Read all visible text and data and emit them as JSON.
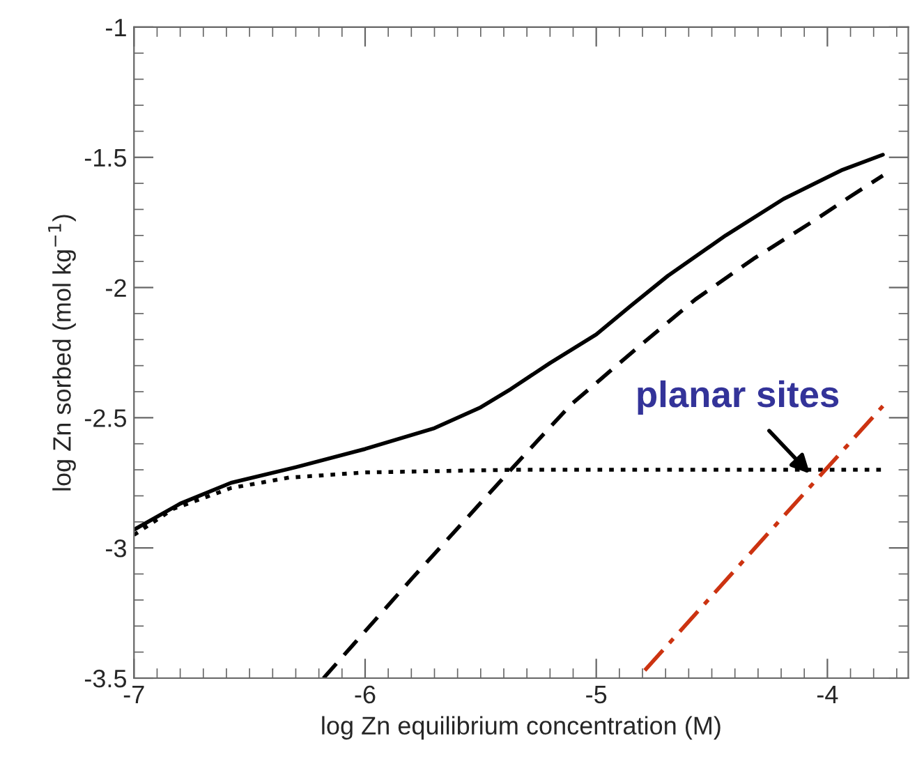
{
  "chart_data": {
    "type": "line",
    "xlabel": "log Zn equilibrium concentration (M)",
    "ylabel": "log Zn sorbed (mol kg$^{−1}$)",
    "xlim": [
      -7,
      -3.65
    ],
    "xticks": [
      -7,
      -6,
      -5,
      -4
    ],
    "ylim": [
      -3.5,
      -1
    ],
    "yticks": [
      -3.5,
      -3,
      -2.5,
      -2,
      -1.5,
      -1
    ],
    "grid": false,
    "legend": false,
    "marker": "none",
    "series": [
      {
        "color": "#000000",
        "line_style": "solid",
        "x": [
          -7,
          -6.8,
          -6.58,
          -6.3,
          -6,
          -5.7,
          -5.5,
          -5.37,
          -5.2,
          -5.0,
          -4.85,
          -4.69,
          -4.44,
          -4.19,
          -3.94,
          -3.76
        ],
        "values": [
          -2.93,
          -2.83,
          -2.75,
          -2.69,
          -2.62,
          -2.54,
          -2.46,
          -2.39,
          -2.29,
          -2.18,
          -2.07,
          -1.955,
          -1.8,
          -1.66,
          -1.55,
          -1.49
        ]
      },
      {
        "color": "#000000",
        "line_style": "dashed",
        "x": [
          -6.18,
          -5.8,
          -5.37,
          -5.11,
          -4.82,
          -4.57,
          -4.32,
          -4.07,
          -3.9,
          -3.76
        ],
        "values": [
          -3.5,
          -3.12,
          -2.7,
          -2.45,
          -2.23,
          -2.045,
          -1.89,
          -1.75,
          -1.65,
          -1.57
        ]
      },
      {
        "color": "#000000",
        "line_style": "dotted",
        "x": [
          -7,
          -6.83,
          -6.58,
          -6.33,
          -6,
          -5.37,
          -3.76
        ],
        "values": [
          -2.95,
          -2.85,
          -2.77,
          -2.73,
          -2.71,
          -2.7,
          -2.7
        ]
      },
      {
        "color": "#cc3311",
        "line_style": "dashdot",
        "x": [
          -4.79,
          -3.76
        ],
        "values": [
          -3.47,
          -2.455
        ]
      }
    ],
    "annotations": [
      {
        "text": "planar sites",
        "x": -4.07,
        "y": -2.72
      }
    ]
  }
}
